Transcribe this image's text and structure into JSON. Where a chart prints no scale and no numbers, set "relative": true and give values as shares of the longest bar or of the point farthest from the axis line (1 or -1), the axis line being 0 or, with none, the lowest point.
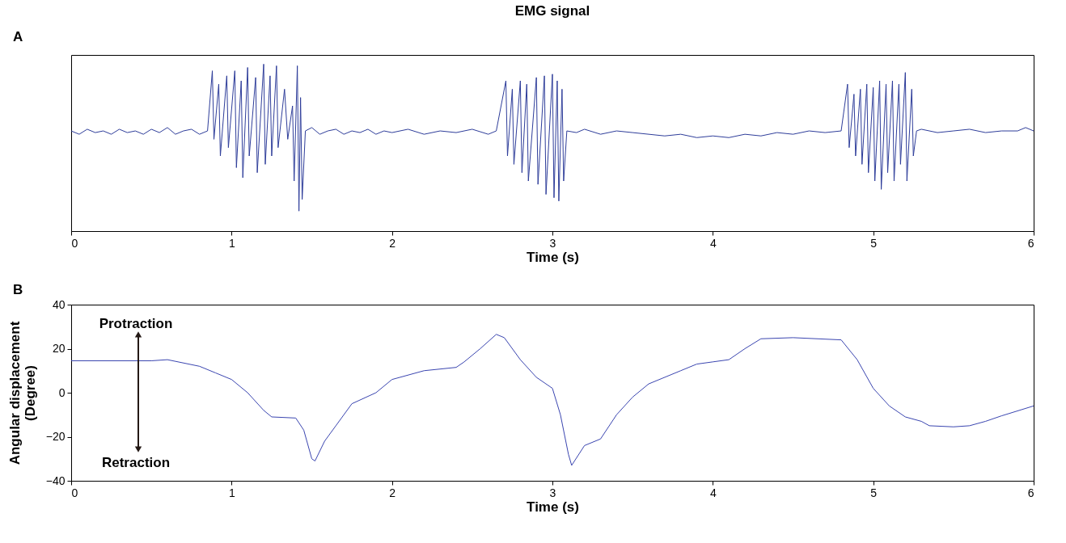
{
  "chart_data": [
    {
      "type": "line",
      "title": "EMG signal",
      "xlabel": "Time (s)",
      "relative": true,
      "tick_labels": "x",
      "color": "#2e3d9a",
      "xlim": [
        0,
        6
      ],
      "xticks": [
        0,
        1,
        2,
        3,
        4,
        5,
        6
      ],
      "annotations": [
        "A"
      ],
      "x": [
        0,
        0.05,
        0.1,
        0.15,
        0.2,
        0.25,
        0.3,
        0.35,
        0.4,
        0.45,
        0.5,
        0.55,
        0.6,
        0.65,
        0.7,
        0.75,
        0.8,
        0.85,
        0.88,
        0.89,
        0.92,
        0.93,
        0.97,
        0.98,
        1.02,
        1.03,
        1.06,
        1.07,
        1.1,
        1.11,
        1.15,
        1.16,
        1.2,
        1.21,
        1.24,
        1.25,
        1.28,
        1.29,
        1.33,
        1.35,
        1.38,
        1.39,
        1.41,
        1.42,
        1.43,
        1.44,
        1.46,
        1.5,
        1.55,
        1.6,
        1.65,
        1.7,
        1.75,
        1.8,
        1.85,
        1.9,
        1.95,
        2.0,
        2.1,
        2.2,
        2.3,
        2.4,
        2.5,
        2.6,
        2.65,
        2.71,
        2.72,
        2.75,
        2.76,
        2.8,
        2.81,
        2.84,
        2.85,
        2.9,
        2.91,
        2.95,
        2.96,
        3.0,
        3.01,
        3.03,
        3.04,
        3.06,
        3.07,
        3.09,
        3.15,
        3.2,
        3.3,
        3.4,
        3.5,
        3.6,
        3.7,
        3.8,
        3.9,
        4.0,
        4.1,
        4.2,
        4.3,
        4.4,
        4.5,
        4.6,
        4.7,
        4.8,
        4.84,
        4.85,
        4.88,
        4.89,
        4.92,
        4.93,
        4.96,
        4.97,
        5.0,
        5.01,
        5.04,
        5.05,
        5.08,
        5.09,
        5.12,
        5.13,
        5.16,
        5.17,
        5.2,
        5.21,
        5.24,
        5.25,
        5.27,
        5.3,
        5.4,
        5.5,
        5.6,
        5.7,
        5.8,
        5.9,
        5.95,
        6.0
      ],
      "values": [
        0.6,
        0.58,
        0.61,
        0.59,
        0.6,
        0.58,
        0.61,
        0.59,
        0.6,
        0.58,
        0.61,
        0.59,
        0.62,
        0.58,
        0.6,
        0.61,
        0.58,
        0.6,
        0.96,
        0.55,
        0.88,
        0.45,
        0.93,
        0.5,
        0.96,
        0.38,
        0.9,
        0.32,
        0.98,
        0.45,
        0.92,
        0.35,
        1.0,
        0.4,
        0.93,
        0.45,
        0.99,
        0.5,
        0.85,
        0.55,
        0.75,
        0.3,
        0.99,
        0.12,
        0.8,
        0.19,
        0.6,
        0.62,
        0.58,
        0.6,
        0.61,
        0.58,
        0.6,
        0.59,
        0.61,
        0.58,
        0.6,
        0.59,
        0.61,
        0.58,
        0.6,
        0.59,
        0.61,
        0.58,
        0.6,
        0.9,
        0.45,
        0.85,
        0.4,
        0.9,
        0.35,
        0.88,
        0.3,
        0.92,
        0.28,
        0.93,
        0.22,
        0.94,
        0.2,
        0.9,
        0.18,
        0.85,
        0.3,
        0.6,
        0.59,
        0.61,
        0.58,
        0.6,
        0.59,
        0.58,
        0.57,
        0.58,
        0.56,
        0.57,
        0.56,
        0.58,
        0.57,
        0.59,
        0.58,
        0.6,
        0.59,
        0.6,
        0.88,
        0.5,
        0.82,
        0.45,
        0.85,
        0.4,
        0.88,
        0.35,
        0.86,
        0.3,
        0.9,
        0.25,
        0.88,
        0.35,
        0.9,
        0.3,
        0.88,
        0.4,
        0.95,
        0.3,
        0.85,
        0.45,
        0.6,
        0.61,
        0.59,
        0.6,
        0.61,
        0.59,
        0.6,
        0.6,
        0.62,
        0.6
      ]
    },
    {
      "type": "line",
      "xlabel": "Time (s)",
      "ylabel": "Angular displacement\n(Degree)",
      "color": "#3a45b0",
      "xlim": [
        0,
        6
      ],
      "xticks": [
        0,
        1,
        2,
        3,
        4,
        5,
        6
      ],
      "ylim": [
        -40,
        40
      ],
      "yticks": [
        -40,
        -20,
        0,
        20,
        40
      ],
      "annotations": [
        "B",
        "Protraction",
        "Retraction"
      ],
      "x": [
        0,
        0.5,
        0.6,
        0.8,
        0.9,
        1.0,
        1.1,
        1.2,
        1.25,
        1.4,
        1.45,
        1.5,
        1.52,
        1.58,
        1.65,
        1.75,
        1.9,
        2.0,
        2.2,
        2.4,
        2.45,
        2.55,
        2.65,
        2.7,
        2.8,
        2.9,
        3.0,
        3.05,
        3.1,
        3.12,
        3.2,
        3.3,
        3.4,
        3.5,
        3.6,
        3.8,
        3.9,
        4.0,
        4.1,
        4.2,
        4.3,
        4.5,
        4.8,
        4.9,
        5.0,
        5.1,
        5.2,
        5.3,
        5.35,
        5.5,
        5.6,
        5.7,
        5.8,
        6.0
      ],
      "values": [
        14.5,
        14.5,
        15,
        12,
        9,
        6,
        0,
        -8,
        -11,
        -11.5,
        -17,
        -30,
        -31,
        -22,
        -15,
        -5,
        0,
        6,
        10,
        11.5,
        14,
        20,
        26.5,
        25,
        15,
        7,
        2,
        -10,
        -28,
        -33,
        -24,
        -21,
        -10,
        -2,
        4,
        10,
        13,
        14,
        15,
        20,
        24.5,
        25,
        24,
        15,
        2,
        -6,
        -11,
        -13,
        -15,
        -15.5,
        -15,
        -13,
        -10.5,
        -6
      ]
    }
  ]
}
